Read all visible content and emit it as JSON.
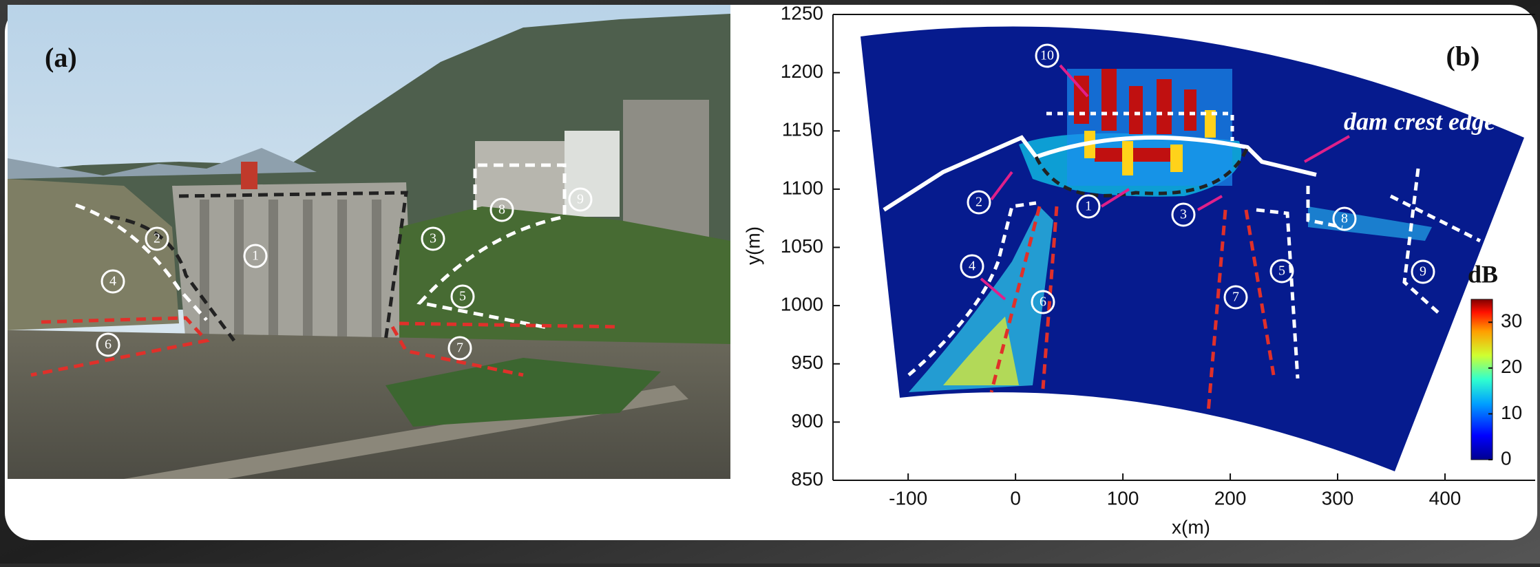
{
  "panel_a": {
    "label": "(a)",
    "markers": [
      "1",
      "2",
      "3",
      "4",
      "5",
      "6",
      "7",
      "8",
      "9"
    ]
  },
  "panel_b": {
    "label": "(b)",
    "annotation": "dam crest edge",
    "markers": [
      "1",
      "2",
      "3",
      "4",
      "5",
      "6",
      "7",
      "8",
      "9",
      "10"
    ],
    "xlabel": "x(m)",
    "ylabel": "y(m)",
    "xlim": [
      -170,
      484
    ],
    "ylim": [
      850,
      1250
    ],
    "xticks": [
      -100,
      0,
      100,
      200,
      300,
      400
    ],
    "yticks": [
      850,
      900,
      950,
      1000,
      1050,
      1100,
      1150,
      1200,
      1250
    ],
    "colorbar": {
      "title": "dB",
      "lim": [
        0,
        35
      ],
      "ticks": [
        0,
        10,
        20,
        30
      ]
    }
  }
}
